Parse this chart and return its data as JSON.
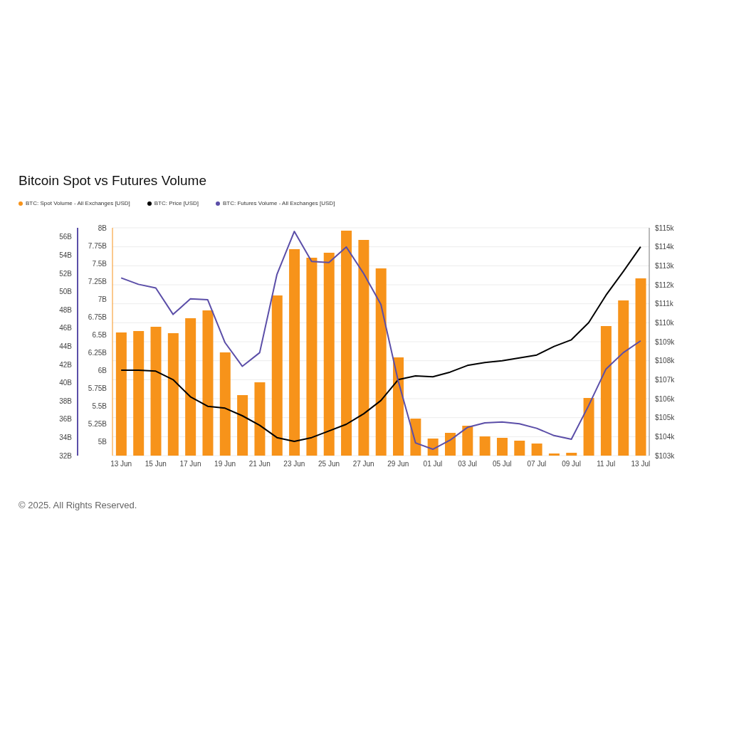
{
  "chart_data": {
    "type": "bar",
    "title": "Bitcoin Spot vs Futures Volume",
    "categories": [
      "13 Jun",
      null,
      "15 Jun",
      null,
      "17 Jun",
      null,
      "19 Jun",
      null,
      "21 Jun",
      null,
      "23 Jun",
      null,
      "25 Jun",
      null,
      "27 Jun",
      null,
      "29 Jun",
      null,
      "01 Jul",
      null,
      "03 Jul",
      null,
      "05 Jul",
      null,
      "07 Jul",
      null,
      "09 Jul",
      null,
      "11 Jul",
      null,
      "13 Jul"
    ],
    "series": [
      {
        "name": "BTC: Spot Volume - All Exchanges [USD]",
        "axis": "y",
        "color": "#f7931a",
        "values": [
          6.53,
          6.55,
          6.61,
          6.52,
          6.73,
          6.84,
          6.25,
          5.65,
          5.83,
          7.05,
          7.7,
          7.58,
          7.65,
          7.96,
          7.83,
          7.43,
          6.18,
          5.32,
          5.04,
          5.12,
          5.22,
          5.07,
          5.05,
          5.01,
          4.97,
          4.83,
          4.84,
          5.61,
          6.62,
          6.98,
          7.29
        ]
      },
      {
        "name": "BTC: Price [USD]",
        "type": "line",
        "axis": "y2",
        "color": "#000000",
        "values": [
          107.5,
          107.5,
          107.45,
          107.0,
          106.1,
          105.6,
          105.5,
          105.1,
          104.6,
          103.95,
          103.75,
          103.95,
          104.3,
          104.65,
          105.2,
          105.9,
          107.0,
          107.2,
          107.15,
          107.4,
          107.75,
          107.9,
          108.0,
          108.15,
          108.3,
          108.75,
          109.1,
          110.0,
          111.45,
          112.7,
          114.0
        ]
      },
      {
        "name": "BTC: Futures Volume - All Exchanges [USD]",
        "type": "line",
        "axis": "y3",
        "color": "#5b4ea8",
        "values": [
          51.5,
          50.8,
          50.4,
          47.5,
          49.2,
          49.1,
          44.4,
          41.8,
          43.3,
          51.9,
          56.6,
          53.3,
          53.2,
          54.9,
          52.0,
          48.6,
          40.2,
          33.4,
          32.7,
          33.7,
          35.1,
          35.6,
          35.7,
          35.5,
          35.0,
          34.2,
          33.8,
          37.5,
          41.5,
          43.3,
          44.6
        ]
      }
    ],
    "ylim": [
      4.8,
      8
    ],
    "yticks": [
      {
        "value": 5,
        "label": "5B"
      },
      {
        "value": 5.25,
        "label": "5.25B"
      },
      {
        "value": 5.5,
        "label": "5.5B"
      },
      {
        "value": 5.75,
        "label": "5.75B"
      },
      {
        "value": 6,
        "label": "6B"
      },
      {
        "value": 6.25,
        "label": "6.25B"
      },
      {
        "value": 6.5,
        "label": "6.5B"
      },
      {
        "value": 6.75,
        "label": "6.75B"
      },
      {
        "value": 7,
        "label": "7B"
      },
      {
        "value": 7.25,
        "label": "7.25B"
      },
      {
        "value": 7.5,
        "label": "7.5B"
      },
      {
        "value": 7.75,
        "label": "7.75B"
      },
      {
        "value": 8,
        "label": "8B"
      }
    ],
    "y2lim": [
      103,
      115
    ],
    "y2ticks": [
      {
        "value": 103,
        "label": "$103k"
      },
      {
        "value": 104,
        "label": "$104k"
      },
      {
        "value": 105,
        "label": "$105k"
      },
      {
        "value": 106,
        "label": "$106k"
      },
      {
        "value": 107,
        "label": "$107k"
      },
      {
        "value": 108,
        "label": "$108k"
      },
      {
        "value": 109,
        "label": "$109k"
      },
      {
        "value": 110,
        "label": "$110k"
      },
      {
        "value": 111,
        "label": "$111k"
      },
      {
        "value": 112,
        "label": "$112k"
      },
      {
        "value": 113,
        "label": "$113k"
      },
      {
        "value": 114,
        "label": "$114k"
      },
      {
        "value": 115,
        "label": "$115k"
      }
    ],
    "y3lim": [
      32,
      57
    ],
    "y3ticks": [
      {
        "value": 32,
        "label": "32B"
      },
      {
        "value": 34,
        "label": "34B"
      },
      {
        "value": 36,
        "label": "36B"
      },
      {
        "value": 38,
        "label": "38B"
      },
      {
        "value": 40,
        "label": "40B"
      },
      {
        "value": 42,
        "label": "42B"
      },
      {
        "value": 44,
        "label": "44B"
      },
      {
        "value": 46,
        "label": "46B"
      },
      {
        "value": 48,
        "label": "48B"
      },
      {
        "value": 50,
        "label": "50B"
      },
      {
        "value": 52,
        "label": "52B"
      },
      {
        "value": 54,
        "label": "54B"
      },
      {
        "value": 56,
        "label": "56B"
      }
    ],
    "grid": "y2",
    "legend": "top left",
    "marker": "none",
    "line_style": "solid",
    "annotations": [
      "© 2025. All Rights Reserved."
    ]
  }
}
